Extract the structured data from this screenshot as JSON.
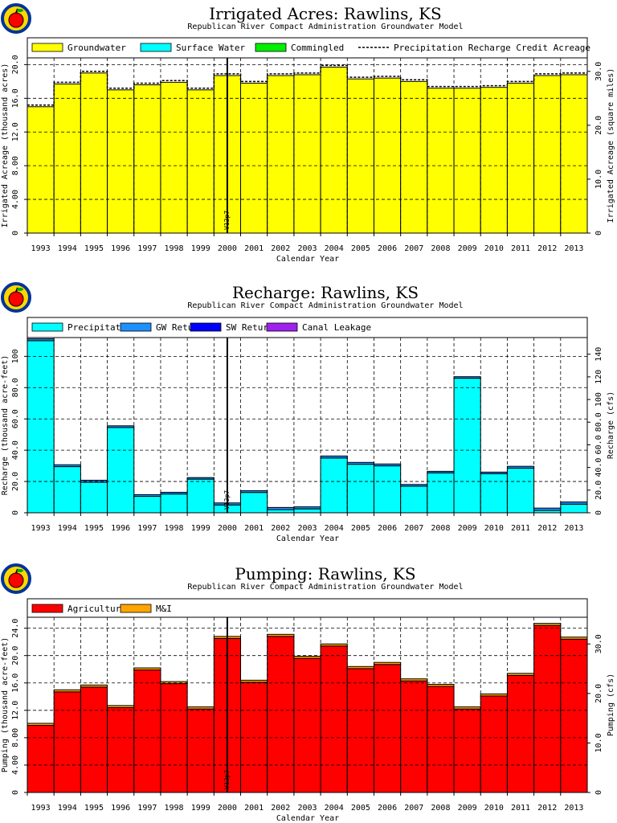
{
  "chart_data": [
    {
      "type": "bar",
      "title": "Irrigated Acres: Rawlins, KS",
      "subtitle": "Republican River Compact Administration Groundwater Model",
      "xlabel": "Calendar Year",
      "ylabel": "Irrigated Acreage (thousand acres)",
      "y2label": "Irrigated Acreage (square miles)",
      "ylim": [
        0,
        20.8
      ],
      "yticks": [
        "0",
        "4.00",
        "8.00",
        "12.0",
        "16.0",
        "20.0"
      ],
      "y2lim": [
        0,
        32.5
      ],
      "y2ticks": [
        "0",
        "10.0",
        "20.0",
        "30.0"
      ],
      "marker_label": "V12p7",
      "marker_x": 2000.5,
      "categories": [
        "1993",
        "1994",
        "1995",
        "1996",
        "1997",
        "1998",
        "1999",
        "2000",
        "2001",
        "2002",
        "2003",
        "2004",
        "2005",
        "2006",
        "2007",
        "2008",
        "2009",
        "2010",
        "2011",
        "2012",
        "2013"
      ],
      "series": [
        {
          "name": "Groundwater",
          "color": "#ffff00",
          "values": [
            15.0,
            17.7,
            19.0,
            17.0,
            17.6,
            17.9,
            17.0,
            18.7,
            17.8,
            18.7,
            18.8,
            19.7,
            18.3,
            18.4,
            18.0,
            17.2,
            17.2,
            17.3,
            17.8,
            18.7,
            18.8
          ]
        },
        {
          "name": "Surface Water",
          "color": "#00ffff",
          "values": [
            0,
            0,
            0,
            0,
            0,
            0,
            0,
            0,
            0,
            0,
            0,
            0,
            0,
            0,
            0,
            0,
            0,
            0,
            0,
            0,
            0
          ]
        },
        {
          "name": "Commingled",
          "color": "#00ee00",
          "values": [
            0,
            0,
            0,
            0,
            0,
            0,
            0,
            0,
            0,
            0,
            0,
            0,
            0,
            0,
            0,
            0,
            0,
            0,
            0,
            0,
            0
          ]
        }
      ],
      "line": {
        "name": "Precipitation Recharge Credit Acreage",
        "style": "dashed",
        "values": [
          15.2,
          17.9,
          19.2,
          17.2,
          17.8,
          18.1,
          17.2,
          18.9,
          18.0,
          18.9,
          19.0,
          19.9,
          18.5,
          18.6,
          18.2,
          17.4,
          17.4,
          17.5,
          18.0,
          18.9,
          19.0
        ]
      },
      "grid": true,
      "legend": "top"
    },
    {
      "type": "bar",
      "title": "Recharge: Rawlins, KS",
      "subtitle": "Republican River Compact Administration Groundwater Model",
      "xlabel": "Calendar Year",
      "ylabel": "Recharge (thousand acre-feet)",
      "y2label": "Recharge (cfs)",
      "ylim": [
        0,
        112
      ],
      "yticks": [
        "0",
        "20.0",
        "40.0",
        "60.0",
        "80.0",
        "100"
      ],
      "y2lim": [
        0,
        154.7
      ],
      "y2ticks": [
        "0",
        "20.0",
        "40.0",
        "60.0",
        "80.0",
        "100",
        "120",
        "140"
      ],
      "marker_label": "V12p7",
      "marker_x": 2000.5,
      "categories": [
        "1993",
        "1994",
        "1995",
        "1996",
        "1997",
        "1998",
        "1999",
        "2000",
        "2001",
        "2002",
        "2003",
        "2004",
        "2005",
        "2006",
        "2007",
        "2008",
        "2009",
        "2010",
        "2011",
        "2012",
        "2013"
      ],
      "series": [
        {
          "name": "Precipitation",
          "color": "#00ffff",
          "values": [
            110.0,
            29.5,
            19.5,
            54.5,
            10.5,
            12.0,
            21.5,
            5.0,
            13.0,
            2.0,
            2.5,
            35.0,
            31.0,
            30.0,
            17.0,
            25.5,
            86.0,
            25.0,
            28.5,
            1.5,
            5.5
          ]
        },
        {
          "name": "GW Returns",
          "color": "#1e90ff",
          "values": [
            1.2,
            1.2,
            1.3,
            1.1,
            1.1,
            1.1,
            1.0,
            1.3,
            1.1,
            1.4,
            1.3,
            1.3,
            1.2,
            1.2,
            1.1,
            1.0,
            1.0,
            1.0,
            1.2,
            1.5,
            1.4
          ]
        },
        {
          "name": "SW Returns",
          "color": "#0000ff",
          "values": [
            0,
            0,
            0,
            0,
            0,
            0,
            0,
            0,
            0,
            0,
            0,
            0,
            0,
            0,
            0,
            0,
            0,
            0,
            0,
            0,
            0
          ]
        },
        {
          "name": "Canal Leakage",
          "color": "#a020f0",
          "values": [
            0,
            0,
            0,
            0,
            0,
            0,
            0,
            0,
            0,
            0,
            0,
            0,
            0,
            0,
            0,
            0,
            0,
            0,
            0,
            0,
            0
          ]
        }
      ],
      "grid": true,
      "legend": "top"
    },
    {
      "type": "bar",
      "title": "Pumping: Rawlins, KS",
      "subtitle": "Republican River Compact Administration Groundwater Model",
      "xlabel": "Calendar Year",
      "ylabel": "Pumping (thousand acre-feet)",
      "y2label": "Pumping (cfs)",
      "ylim": [
        0,
        25.6
      ],
      "yticks": [
        "0",
        "4.00",
        "8.00",
        "12.0",
        "16.0",
        "20.0",
        "24.0"
      ],
      "y2lim": [
        0,
        35.4
      ],
      "y2ticks": [
        "0",
        "10.0",
        "20.0",
        "30.0"
      ],
      "marker_label": "V12p7",
      "marker_x": 2000.5,
      "categories": [
        "1993",
        "1994",
        "1995",
        "1996",
        "1997",
        "1998",
        "1999",
        "2000",
        "2001",
        "2002",
        "2003",
        "2004",
        "2005",
        "2006",
        "2007",
        "2008",
        "2009",
        "2010",
        "2011",
        "2012",
        "2013"
      ],
      "series": [
        {
          "name": "Agricultural",
          "color": "#ff0000",
          "values": [
            9.8,
            14.7,
            15.4,
            12.4,
            17.9,
            15.9,
            12.2,
            22.5,
            16.1,
            22.8,
            19.6,
            21.4,
            18.1,
            18.7,
            16.3,
            15.5,
            12.2,
            14.1,
            17.1,
            24.4,
            22.4
          ]
        },
        {
          "name": "M&I",
          "color": "#ffa500",
          "values": [
            0.3,
            0.3,
            0.3,
            0.3,
            0.3,
            0.3,
            0.3,
            0.3,
            0.3,
            0.3,
            0.3,
            0.3,
            0.3,
            0.3,
            0.3,
            0.3,
            0.3,
            0.3,
            0.3,
            0.3,
            0.3
          ]
        }
      ],
      "grid": true,
      "legend": "top"
    }
  ]
}
